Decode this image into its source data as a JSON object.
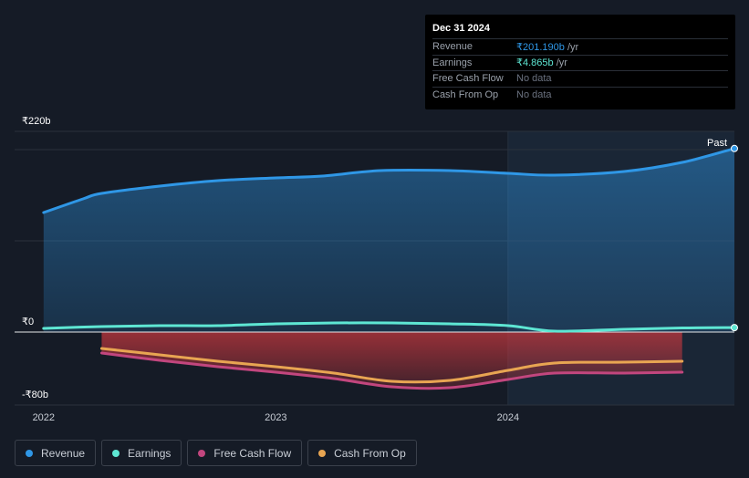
{
  "tooltip": {
    "date": "Dec 31 2024",
    "rows": [
      {
        "label": "Revenue",
        "value": "₹201.190b",
        "unit": " /yr"
      },
      {
        "label": "Earnings",
        "value": "₹4.865b",
        "unit": " /yr"
      },
      {
        "label": "Free Cash Flow",
        "value": "No data"
      },
      {
        "label": "Cash From Op",
        "value": "No data"
      }
    ]
  },
  "legend": [
    {
      "label": "Revenue",
      "color": "#2f97e6"
    },
    {
      "label": "Earnings",
      "color": "#5ee6d3"
    },
    {
      "label": "Free Cash Flow",
      "color": "#c2467e"
    },
    {
      "label": "Cash From Op",
      "color": "#e8a552"
    }
  ],
  "chart_data": {
    "type": "line",
    "y_tick_labels": [
      "₹220b",
      "₹0",
      "-₹80b"
    ],
    "x_tick_labels": [
      "2022",
      "2023",
      "2024"
    ],
    "past_label": "Past",
    "ylim": [
      -80,
      220
    ],
    "xlim": [
      2021.875,
      2024.975
    ],
    "x_ticks": [
      2022,
      2023,
      2024
    ],
    "series": [
      {
        "name": "Revenue",
        "color": "#2f97e6",
        "x": [
          2022.0,
          2022.17,
          2022.25,
          2022.5,
          2022.75,
          2023.0,
          2023.2,
          2023.45,
          2023.75,
          2024.0,
          2024.2,
          2024.5,
          2024.75,
          2024.975
        ],
        "values": [
          131,
          146,
          152,
          160,
          166,
          169,
          171,
          177,
          177,
          174,
          172,
          176,
          186,
          201.19
        ]
      },
      {
        "name": "Earnings",
        "color": "#5ee6d3",
        "x": [
          2022.0,
          2022.25,
          2022.5,
          2022.75,
          2023.0,
          2023.25,
          2023.5,
          2023.75,
          2024.0,
          2024.2,
          2024.5,
          2024.75,
          2024.975
        ],
        "values": [
          4,
          6,
          7,
          7,
          9,
          10,
          10,
          9,
          7,
          1,
          3,
          4.5,
          4.865
        ]
      },
      {
        "name": "Free Cash Flow",
        "color": "#c2467e",
        "x": [
          2022.25,
          2022.5,
          2022.75,
          2023.0,
          2023.25,
          2023.5,
          2023.75,
          2024.0,
          2024.2,
          2024.5,
          2024.75
        ],
        "values": [
          -23,
          -31,
          -38,
          -44,
          -51,
          -60,
          -61,
          -52,
          -45,
          -45,
          -44
        ]
      },
      {
        "name": "Cash From Op",
        "color": "#e8a552",
        "x": [
          2022.25,
          2022.5,
          2022.75,
          2023.0,
          2023.25,
          2023.5,
          2023.75,
          2024.0,
          2024.2,
          2024.5,
          2024.75
        ],
        "values": [
          -18,
          -25,
          -32,
          -38,
          -45,
          -54,
          -53,
          -42,
          -34,
          -33,
          -32
        ]
      }
    ]
  }
}
